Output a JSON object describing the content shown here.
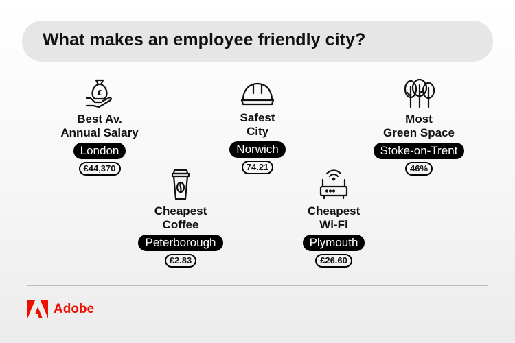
{
  "title": "What makes an employee friendly city?",
  "items": [
    {
      "category": [
        "Best Av.",
        "Annual Salary"
      ],
      "city": "London",
      "value": "£44,370",
      "icon": "money-bag-hand-icon"
    },
    {
      "category": [
        "Safest",
        "City"
      ],
      "city": "Norwich",
      "value": "74.21",
      "icon": "hard-hat-icon"
    },
    {
      "category": [
        "Most",
        "Green Space"
      ],
      "city": "Stoke-on-Trent",
      "value": "46%",
      "icon": "trees-icon"
    },
    {
      "category": [
        "Cheapest",
        "Coffee"
      ],
      "city": "Peterborough",
      "value": "£2.83",
      "icon": "coffee-cup-icon"
    },
    {
      "category": [
        "Cheapest",
        "Wi-Fi"
      ],
      "city": "Plymouth",
      "value": "£26.60",
      "icon": "wifi-router-icon"
    }
  ],
  "brand": {
    "name": "Adobe",
    "color": "#eb1000"
  }
}
